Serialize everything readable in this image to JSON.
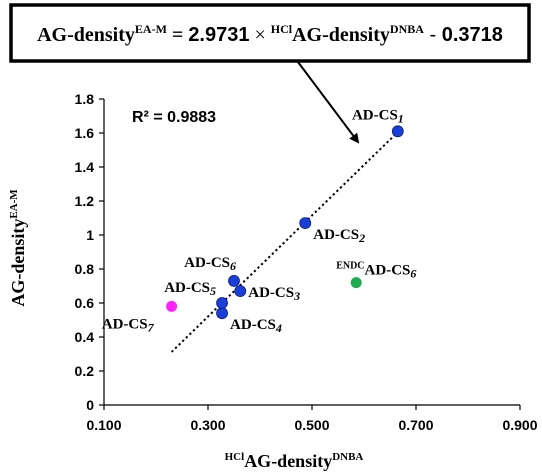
{
  "chart_data": {
    "type": "scatter",
    "equation": {
      "lhs": "AG-density",
      "lhs_sup": "EA-M",
      "equals": " = ",
      "slope": "2.9731",
      "times": " × ",
      "rhs_pre_sup": "HCl",
      "rhs": "AG-density",
      "rhs_sup": "DNBA",
      "minus": " - ",
      "intercept": "0.3718"
    },
    "r_squared_label": "R² = 0.9883",
    "xlabel": {
      "pre_sup": "HCl",
      "text": "AG-density",
      "sup": "DNBA"
    },
    "ylabel": {
      "text": "AG-density",
      "sup": "EA-M"
    },
    "xlim": [
      0.1,
      0.9
    ],
    "ylim": [
      0,
      1.8
    ],
    "x_ticks": [
      0.1,
      0.3,
      0.5,
      0.7,
      0.9
    ],
    "x_tick_labels": [
      "0.100",
      "0.300",
      "0.500",
      "0.700",
      "0.900"
    ],
    "y_ticks": [
      0,
      0.2,
      0.4,
      0.6,
      0.8,
      1.0,
      1.2,
      1.4,
      1.6,
      1.8
    ],
    "y_tick_labels": [
      "0",
      "0.2",
      "0.4",
      "0.6",
      "0.8",
      "1",
      "1.2",
      "1.4",
      "1.6",
      "1.8"
    ],
    "grid": false,
    "trendline": {
      "style": "dotted",
      "x": [
        0.23,
        0.67
      ],
      "slope": 2.9731,
      "intercept": -0.3718
    },
    "colors": {
      "blue": "#1a3fd6",
      "magenta": "#ff22ff",
      "green": "#1fab52",
      "axis": "#000000"
    },
    "points": [
      {
        "x": 0.665,
        "y": 1.61,
        "color": "blue",
        "pre": "",
        "label": "AD-CS",
        "sub": "1",
        "label_pos": "above-left"
      },
      {
        "x": 0.487,
        "y": 1.07,
        "color": "blue",
        "pre": "",
        "label": "AD-CS",
        "sub": "2",
        "label_pos": "below-right"
      },
      {
        "x": 0.362,
        "y": 0.67,
        "color": "blue",
        "pre": "",
        "label": "AD-CS",
        "sub": "3",
        "label_pos": "right"
      },
      {
        "x": 0.327,
        "y": 0.54,
        "color": "blue",
        "pre": "",
        "label": "AD-CS",
        "sub": "4",
        "label_pos": "below-right"
      },
      {
        "x": 0.327,
        "y": 0.6,
        "color": "blue",
        "pre": "",
        "label": "AD-CS",
        "sub": "5",
        "label_pos": "above-left"
      },
      {
        "x": 0.35,
        "y": 0.73,
        "color": "blue",
        "pre": "",
        "label": "AD-CS",
        "sub": "6",
        "label_pos": "above-left"
      },
      {
        "x": 0.23,
        "y": 0.58,
        "color": "magenta",
        "pre": "",
        "label": "AD-CS",
        "sub": "7",
        "label_pos": "below-left"
      },
      {
        "x": 0.585,
        "y": 0.72,
        "color": "green",
        "pre": "ENDC",
        "label": "AD-CS",
        "sub": "6",
        "label_pos": "above"
      }
    ]
  }
}
